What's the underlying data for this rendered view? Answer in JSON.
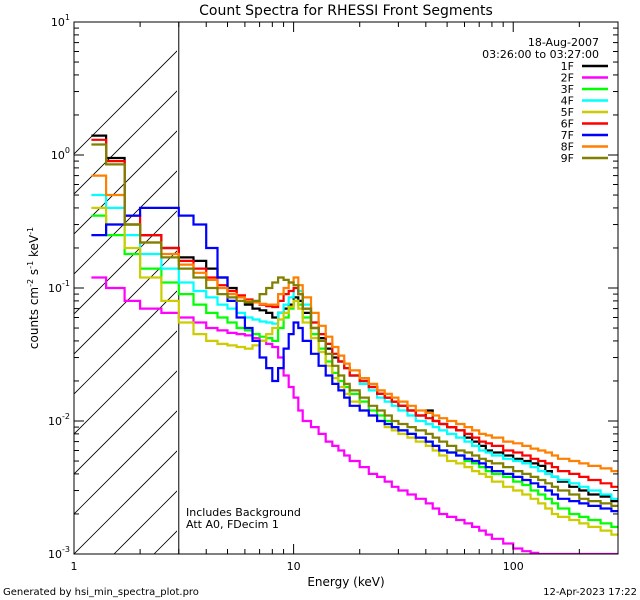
{
  "chart_data": {
    "type": "line",
    "title": "Count Spectra for RHESSI Front Segments",
    "xlabel": "Energy (keV)",
    "ylabel": {
      "main": "counts cm",
      "exp1": "-2",
      "mid1": " s",
      "exp2": "-1",
      "mid2": " keV",
      "exp3": "-1"
    },
    "xscale": "log",
    "yscale": "log",
    "xlim": [
      1,
      300
    ],
    "ylim": [
      0.001,
      10
    ],
    "x_ticks": [
      {
        "value": 1,
        "label": "1"
      },
      {
        "value": 10,
        "label": "10"
      },
      {
        "value": 100,
        "label": "100"
      }
    ],
    "y_ticks": [
      {
        "value": 0.001,
        "base": "10",
        "exp": "-3"
      },
      {
        "value": 0.01,
        "base": "10",
        "exp": "-2"
      },
      {
        "value": 0.1,
        "base": "10",
        "exp": "-1"
      },
      {
        "value": 1,
        "base": "10",
        "exp": "0"
      },
      {
        "value": 10,
        "base": "10",
        "exp": "1"
      }
    ],
    "hatched_region_kev": [
      1,
      3
    ],
    "date": "18-Aug-2007",
    "time_range": "03:26:00 to 03:27:00",
    "annotations": [
      "Includes Background",
      "Att A0, FDecim 1"
    ],
    "legend_position": "top-right",
    "footer_left": "Generated by hsi_min_spectra_plot.pro",
    "footer_right": "12-Apr-2023 17:22",
    "energy_bins_keV": [
      1.2,
      1.4,
      1.7,
      2.0,
      2.5,
      3.0,
      3.5,
      4.0,
      4.5,
      5.0,
      5.5,
      6.0,
      6.5,
      7.0,
      7.5,
      8.0,
      8.5,
      9.0,
      9.5,
      10.0,
      10.5,
      11,
      12,
      13,
      14,
      15,
      16,
      17,
      18,
      20,
      22,
      24,
      26,
      28,
      30,
      33,
      36,
      40,
      43,
      46,
      50,
      55,
      60,
      65,
      70,
      75,
      80,
      90,
      100,
      110,
      120,
      130,
      140,
      150,
      160,
      180,
      200,
      220,
      250,
      280,
      300
    ],
    "series": [
      {
        "name": "1F",
        "color": "#000000",
        "values": [
          1.4,
          0.95,
          0.3,
          0.25,
          0.2,
          0.17,
          0.16,
          0.14,
          0.12,
          0.1,
          0.085,
          0.075,
          0.07,
          0.068,
          0.065,
          0.06,
          0.065,
          0.07,
          0.075,
          0.085,
          0.08,
          0.065,
          0.05,
          0.042,
          0.035,
          0.03,
          0.028,
          0.025,
          0.022,
          0.02,
          0.018,
          0.016,
          0.015,
          0.014,
          0.013,
          0.012,
          0.011,
          0.012,
          0.01,
          0.0095,
          0.009,
          0.0085,
          0.0075,
          0.007,
          0.0065,
          0.006,
          0.0058,
          0.0055,
          0.0052,
          0.005,
          0.0048,
          0.0046,
          0.0042,
          0.0038,
          0.0035,
          0.0032,
          0.003,
          0.0028,
          0.0027,
          0.0025
        ]
      },
      {
        "name": "2F",
        "color": "#ff00ff",
        "values": [
          0.12,
          0.1,
          0.08,
          0.07,
          0.065,
          0.06,
          0.055,
          0.05,
          0.048,
          0.046,
          0.045,
          0.044,
          0.042,
          0.04,
          0.038,
          0.036,
          0.03,
          0.022,
          0.018,
          0.015,
          0.012,
          0.01,
          0.009,
          0.008,
          0.007,
          0.0065,
          0.006,
          0.0055,
          0.005,
          0.0045,
          0.004,
          0.0038,
          0.0035,
          0.0032,
          0.003,
          0.0028,
          0.0026,
          0.0024,
          0.0022,
          0.002,
          0.0019,
          0.0018,
          0.0017,
          0.0016,
          0.0015,
          0.0014,
          0.0013,
          0.0012,
          0.0011,
          0.00105,
          0.00102,
          0.001,
          0.001,
          0.001,
          0.001,
          0.001,
          0.001,
          0.001,
          0.001,
          0.001
        ]
      },
      {
        "name": "3F",
        "color": "#00ff00",
        "values": [
          0.35,
          0.25,
          0.18,
          0.14,
          0.11,
          0.09,
          0.075,
          0.065,
          0.06,
          0.055,
          0.05,
          0.048,
          0.045,
          0.043,
          0.042,
          0.04,
          0.05,
          0.06,
          0.07,
          0.08,
          0.075,
          0.06,
          0.045,
          0.035,
          0.028,
          0.023,
          0.02,
          0.018,
          0.016,
          0.014,
          0.012,
          0.011,
          0.01,
          0.009,
          0.0085,
          0.008,
          0.0075,
          0.007,
          0.0065,
          0.006,
          0.0058,
          0.0055,
          0.005,
          0.0048,
          0.0045,
          0.0042,
          0.004,
          0.0038,
          0.0035,
          0.0033,
          0.003,
          0.0028,
          0.0026,
          0.0024,
          0.0022,
          0.002,
          0.0019,
          0.0018,
          0.0017,
          0.0016
        ]
      },
      {
        "name": "4F",
        "color": "#00ffff",
        "values": [
          0.5,
          0.4,
          0.25,
          0.18,
          0.14,
          0.11,
          0.095,
          0.085,
          0.075,
          0.07,
          0.065,
          0.06,
          0.058,
          0.056,
          0.055,
          0.054,
          0.065,
          0.075,
          0.085,
          0.1,
          0.095,
          0.075,
          0.055,
          0.045,
          0.038,
          0.032,
          0.028,
          0.025,
          0.022,
          0.019,
          0.017,
          0.015,
          0.014,
          0.013,
          0.012,
          0.011,
          0.01,
          0.0095,
          0.009,
          0.0085,
          0.008,
          0.0075,
          0.007,
          0.0065,
          0.006,
          0.0058,
          0.0055,
          0.0052,
          0.005,
          0.0048,
          0.0045,
          0.0042,
          0.004,
          0.0038,
          0.0036,
          0.0034,
          0.0032,
          0.003,
          0.0028,
          0.0026
        ]
      },
      {
        "name": "5F",
        "color": "#cccc00",
        "values": [
          0.4,
          0.3,
          0.2,
          0.12,
          0.08,
          0.055,
          0.045,
          0.04,
          0.038,
          0.037,
          0.036,
          0.035,
          0.037,
          0.04,
          0.045,
          0.05,
          0.058,
          0.065,
          0.072,
          0.08,
          0.07,
          0.055,
          0.042,
          0.033,
          0.026,
          0.021,
          0.018,
          0.016,
          0.014,
          0.012,
          0.011,
          0.01,
          0.009,
          0.0085,
          0.008,
          0.0075,
          0.007,
          0.0065,
          0.006,
          0.0055,
          0.005,
          0.0048,
          0.0045,
          0.0042,
          0.004,
          0.0038,
          0.0035,
          0.0032,
          0.003,
          0.0028,
          0.0026,
          0.0024,
          0.0022,
          0.002,
          0.0019,
          0.0018,
          0.0017,
          0.0016,
          0.0015,
          0.0014
        ]
      },
      {
        "name": "6F",
        "color": "#ff0000",
        "values": [
          1.3,
          0.9,
          0.35,
          0.25,
          0.2,
          0.16,
          0.14,
          0.12,
          0.105,
          0.095,
          0.088,
          0.082,
          0.078,
          0.075,
          0.073,
          0.072,
          0.08,
          0.09,
          0.095,
          0.1,
          0.09,
          0.07,
          0.055,
          0.045,
          0.038,
          0.032,
          0.028,
          0.025,
          0.022,
          0.02,
          0.018,
          0.016,
          0.015,
          0.014,
          0.013,
          0.012,
          0.011,
          0.0105,
          0.01,
          0.0095,
          0.009,
          0.0085,
          0.008,
          0.0075,
          0.007,
          0.0068,
          0.0065,
          0.006,
          0.0058,
          0.0055,
          0.0052,
          0.005,
          0.0048,
          0.0045,
          0.0042,
          0.004,
          0.0038,
          0.0036,
          0.0034,
          0.0032
        ]
      },
      {
        "name": "7F",
        "color": "#0000ff",
        "values": [
          0.25,
          0.3,
          0.35,
          0.4,
          0.4,
          0.35,
          0.3,
          0.2,
          0.12,
          0.08,
          0.06,
          0.05,
          0.04,
          0.03,
          0.025,
          0.02,
          0.025,
          0.035,
          0.045,
          0.055,
          0.05,
          0.04,
          0.032,
          0.026,
          0.022,
          0.019,
          0.017,
          0.015,
          0.013,
          0.012,
          0.011,
          0.01,
          0.0095,
          0.009,
          0.0085,
          0.008,
          0.0075,
          0.007,
          0.0065,
          0.006,
          0.0058,
          0.0055,
          0.0052,
          0.005,
          0.0048,
          0.0045,
          0.0042,
          0.004,
          0.0038,
          0.0036,
          0.0034,
          0.0032,
          0.003,
          0.0028,
          0.0026,
          0.0025,
          0.0024,
          0.0023,
          0.0022,
          0.0021
        ]
      },
      {
        "name": "8F",
        "color": "#ff7f00",
        "values": [
          0.7,
          0.5,
          0.3,
          0.22,
          0.18,
          0.15,
          0.13,
          0.115,
          0.1,
          0.09,
          0.085,
          0.08,
          0.078,
          0.076,
          0.075,
          0.075,
          0.09,
          0.1,
          0.11,
          0.12,
          0.105,
          0.085,
          0.065,
          0.052,
          0.043,
          0.036,
          0.031,
          0.027,
          0.024,
          0.021,
          0.019,
          0.017,
          0.016,
          0.015,
          0.014,
          0.013,
          0.012,
          0.0115,
          0.011,
          0.0105,
          0.01,
          0.0095,
          0.009,
          0.0085,
          0.008,
          0.0078,
          0.0075,
          0.007,
          0.0068,
          0.0065,
          0.0062,
          0.006,
          0.0058,
          0.0055,
          0.0052,
          0.005,
          0.0048,
          0.0046,
          0.0044,
          0.0042
        ]
      },
      {
        "name": "9F",
        "color": "#7f7f00",
        "values": [
          1.2,
          0.85,
          0.3,
          0.22,
          0.17,
          0.14,
          0.12,
          0.1,
          0.09,
          0.085,
          0.08,
          0.078,
          0.08,
          0.09,
          0.1,
          0.11,
          0.12,
          0.115,
          0.11,
          0.105,
          0.09,
          0.07,
          0.05,
          0.04,
          0.032,
          0.026,
          0.022,
          0.019,
          0.017,
          0.015,
          0.013,
          0.012,
          0.011,
          0.01,
          0.0095,
          0.009,
          0.0085,
          0.008,
          0.0075,
          0.007,
          0.0065,
          0.006,
          0.0058,
          0.0055,
          0.0052,
          0.005,
          0.0048,
          0.0045,
          0.0042,
          0.004,
          0.0038,
          0.0036,
          0.0034,
          0.0032,
          0.003,
          0.0028,
          0.0026,
          0.0025,
          0.0024,
          0.0023
        ]
      }
    ]
  }
}
